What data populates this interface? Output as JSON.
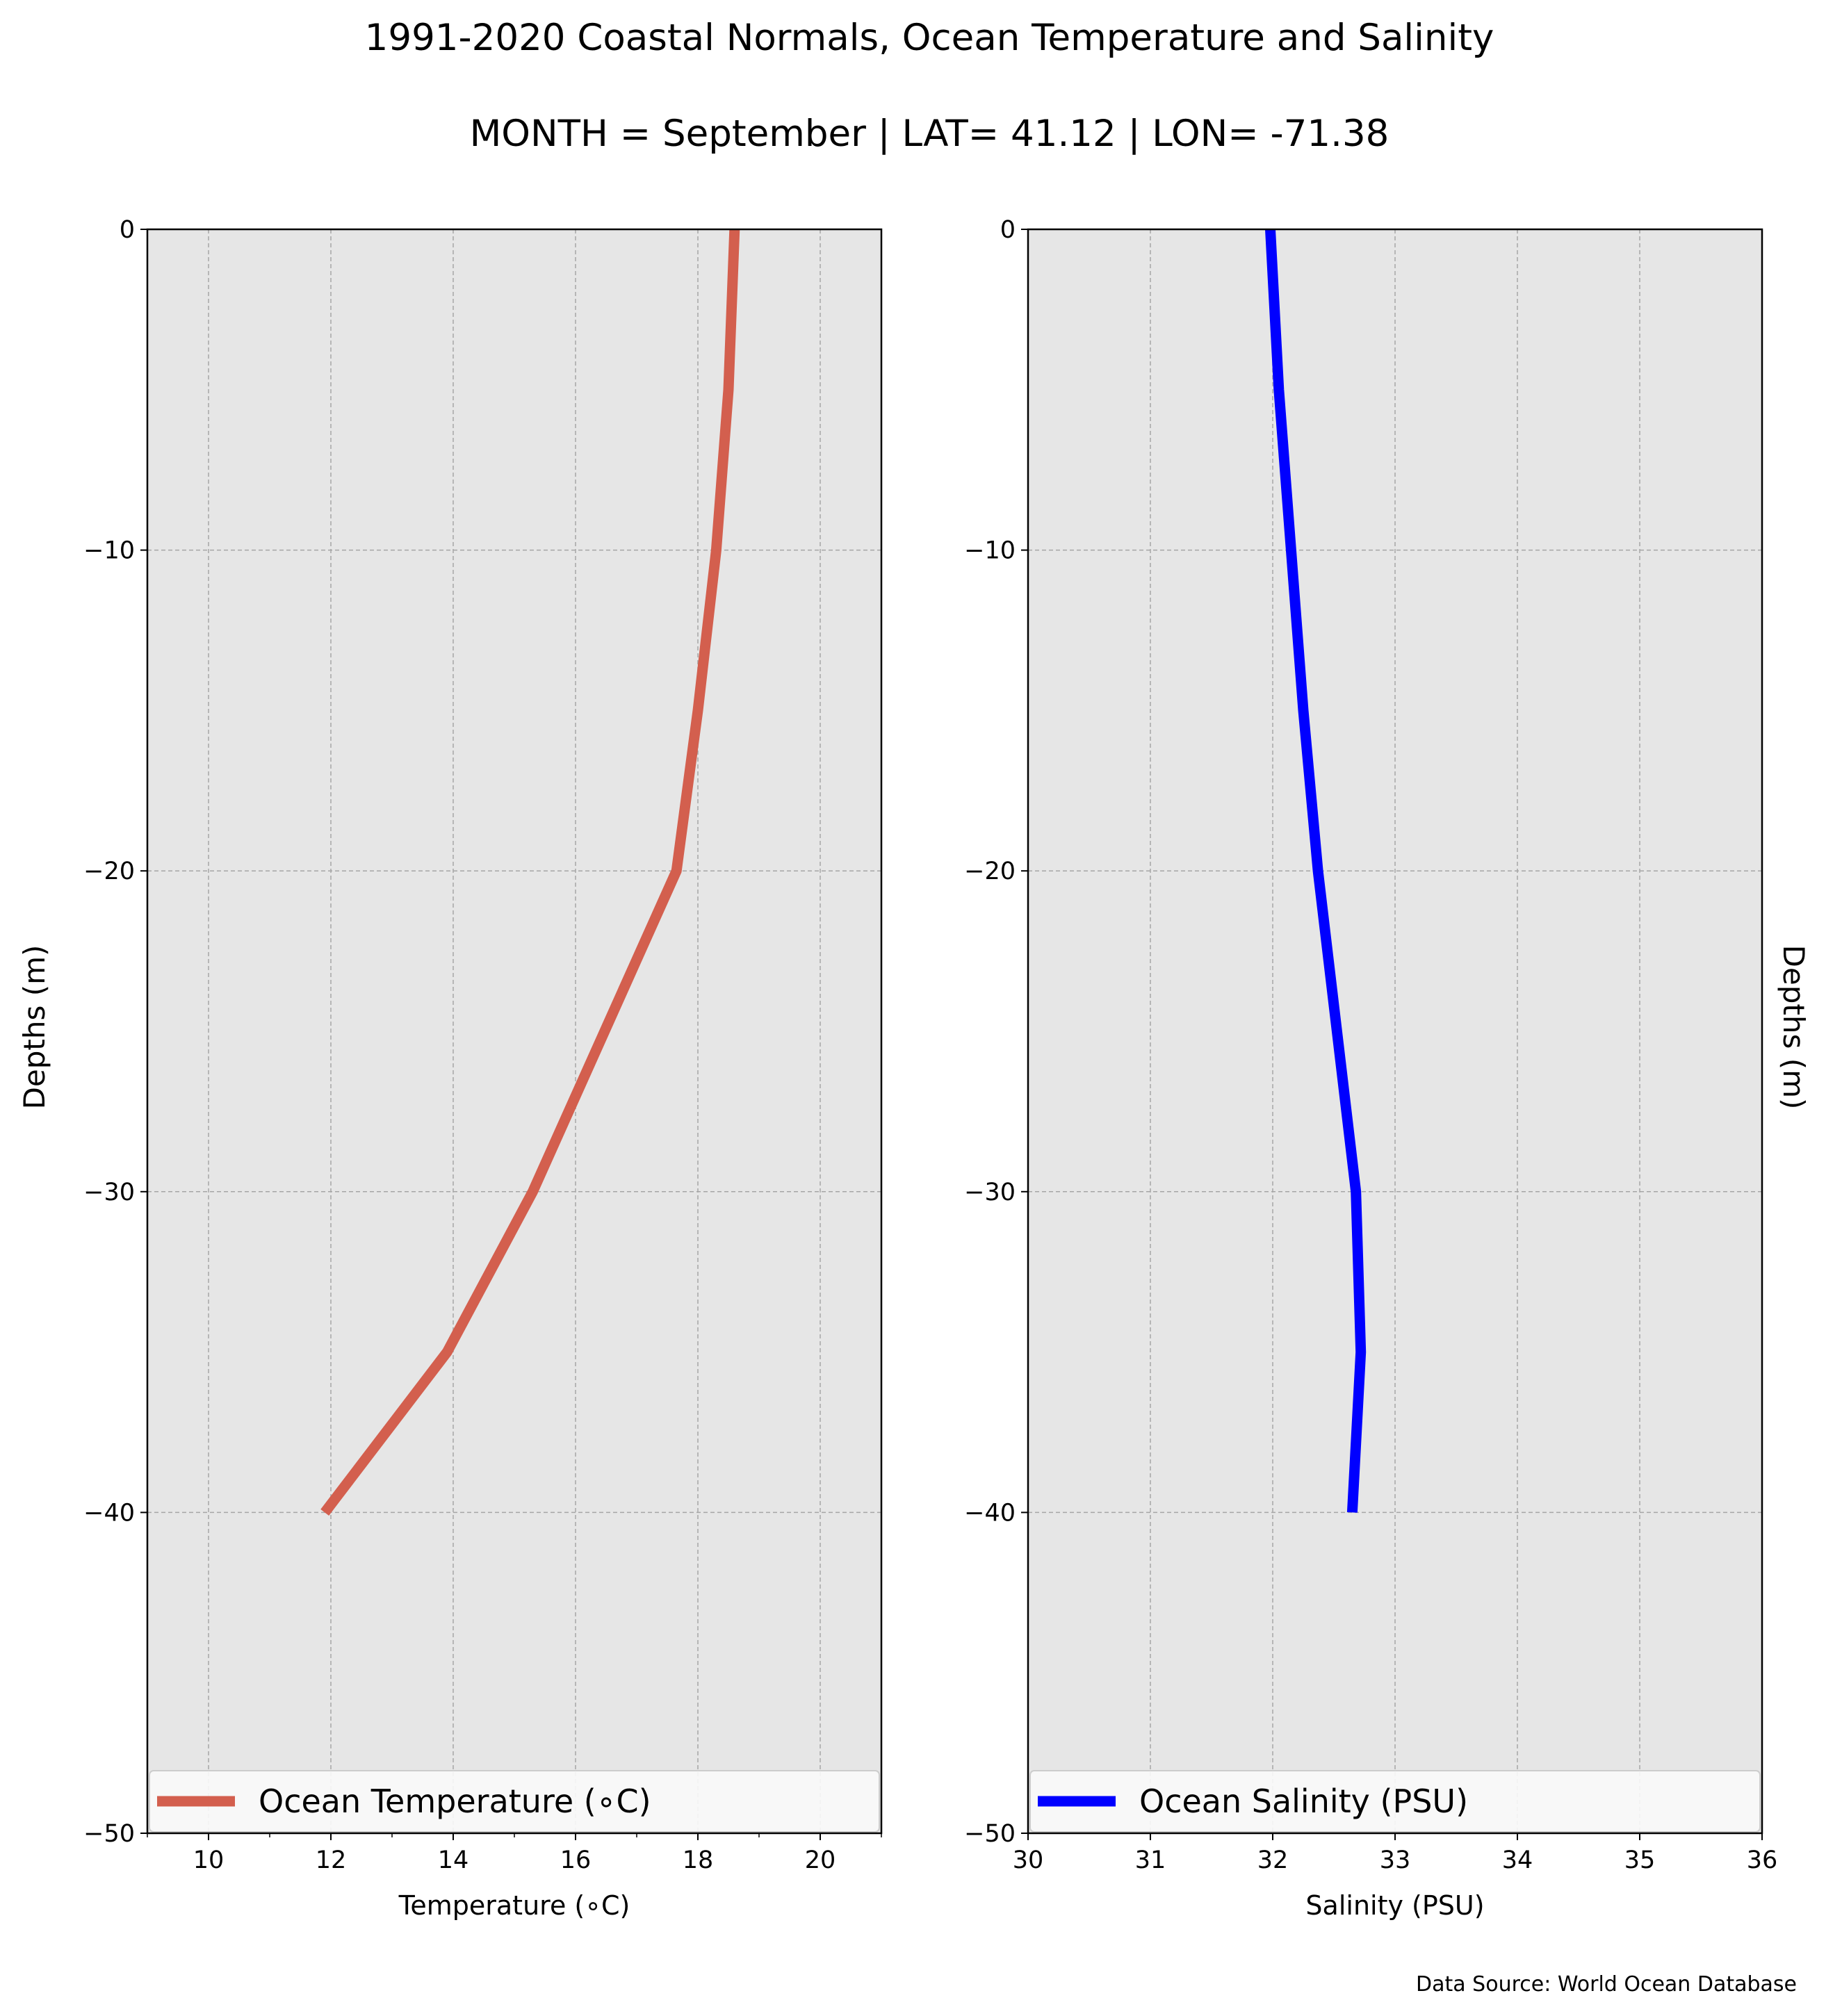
{
  "figure": {
    "title": "1991-2020 Coastal Normals, Ocean Temperature and Salinity",
    "subtitle": "MONTH = September | LAT= 41.12 | LON= -71.38",
    "source_note": "Data Source: World Ocean Database"
  },
  "colors": {
    "temperature": "#d35f4e",
    "salinity": "#0000ff",
    "plot_background": "#e6e6e6",
    "grid": "#a6a6a6"
  },
  "chart_data": [
    {
      "type": "line",
      "xlabel": "Temperature ($^\\circ$C)",
      "xlabel_display": "Temperature (∘C)",
      "ylabel": "Depths (m)",
      "xlim": [
        9,
        21
      ],
      "ylim": [
        -50,
        0
      ],
      "xticks": [
        10,
        12,
        14,
        16,
        18,
        20
      ],
      "xtick_labels": [
        "10",
        "12",
        "14",
        "16",
        "18",
        "20"
      ],
      "yticks": [
        0,
        -10,
        -20,
        -30,
        -40,
        -50
      ],
      "ytick_labels": [
        "0",
        "−10",
        "−20",
        "−30",
        "−40",
        "−50"
      ],
      "grid": true,
      "legend_position": "lower center",
      "series": [
        {
          "name": "Ocean Temperature (∘C)",
          "x": [
            18.6,
            18.5,
            18.3,
            18.0,
            17.65,
            15.3,
            13.9,
            11.9
          ],
          "y": [
            0,
            -5,
            -10,
            -15,
            -20,
            -30,
            -35,
            -40
          ]
        }
      ]
    },
    {
      "type": "line",
      "xlabel": "Salinity (PSU)",
      "ylabel": "Depths (m)",
      "xlim": [
        30,
        36
      ],
      "ylim": [
        -50,
        0
      ],
      "xticks": [
        30,
        31,
        32,
        33,
        34,
        35,
        36
      ],
      "xtick_labels": [
        "30",
        "31",
        "32",
        "33",
        "34",
        "35",
        "36"
      ],
      "yticks": [
        0,
        -10,
        -20,
        -30,
        -40,
        -50
      ],
      "ytick_labels": [
        "0",
        "−10",
        "−20",
        "−30",
        "−40",
        "−50"
      ],
      "grid": true,
      "legend_position": "lower center",
      "series": [
        {
          "name": "Ocean Salinity (PSU)",
          "x": [
            31.98,
            32.05,
            32.15,
            32.25,
            32.37,
            32.68,
            32.72,
            32.65
          ],
          "y": [
            0,
            -5,
            -10,
            -15,
            -20,
            -30,
            -35,
            -40
          ]
        }
      ]
    }
  ]
}
